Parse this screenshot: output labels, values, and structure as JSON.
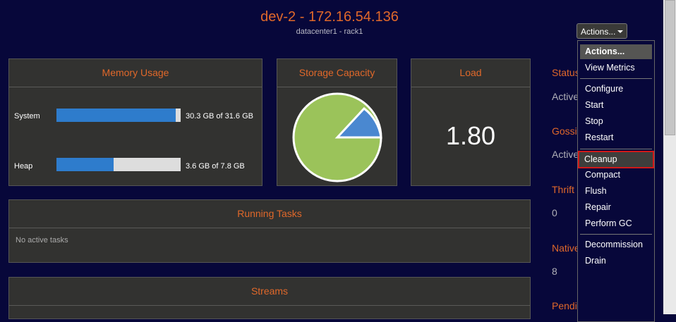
{
  "header": {
    "title": "dev-2 - 172.16.54.136",
    "subtitle": "datacenter1 - rack1"
  },
  "actions_button": "Actions...",
  "panels": {
    "memory": {
      "title": "Memory Usage",
      "rows": [
        {
          "label": "System",
          "value": "30.3 GB of 31.6 GB"
        },
        {
          "label": "Heap",
          "value": "3.6 GB of 7.8 GB"
        }
      ]
    },
    "storage": {
      "title": "Storage Capacity"
    },
    "load": {
      "title": "Load",
      "value": "1.80"
    }
  },
  "running_tasks": {
    "title": "Running Tasks",
    "message": "No active tasks"
  },
  "streams": {
    "title": "Streams"
  },
  "side_column": [
    "Status",
    "Active",
    "Gossip",
    "Active",
    "Thrift",
    "0",
    "Native",
    "8",
    "Pending Tasks"
  ],
  "menu": {
    "items": [
      "Actions...",
      "View Metrics",
      "Configure",
      "Start",
      "Stop",
      "Restart",
      "Cleanup",
      "Compact",
      "Flush",
      "Repair",
      "Perform GC",
      "Decommission",
      "Drain"
    ]
  }
}
